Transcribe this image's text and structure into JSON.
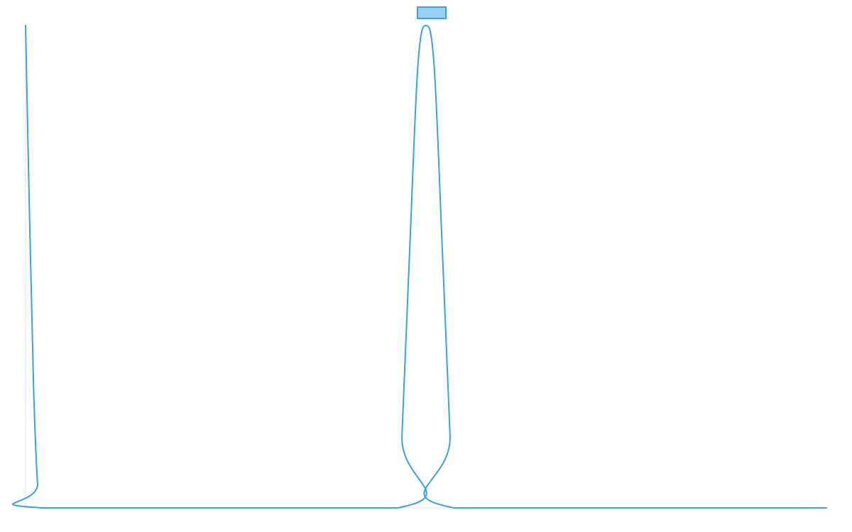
{
  "colors": {
    "series_stroke": "#36a2eb",
    "series_fill": "#9ad0f5",
    "axis": "#e3e3e3",
    "background": "#ffffff"
  },
  "chart_data": {
    "type": "line",
    "title": "",
    "xlabel": "",
    "ylabel": "",
    "legend": {
      "position": "top-center",
      "entries": [
        {
          "label": ""
        }
      ]
    },
    "grid": false,
    "xlim": [
      0,
      100
    ],
    "ylim": [
      0,
      1
    ],
    "series": [
      {
        "color": "#36a2eb",
        "fill": "#9ad0f5",
        "x": [
          0,
          0.5,
          1,
          1.5,
          2,
          46.5,
          47,
          48,
          49,
          50,
          51,
          52,
          53,
          53.5,
          100
        ],
        "y": [
          1,
          0.6,
          0.25,
          0.05,
          0,
          0,
          0.15,
          0.55,
          0.92,
          1,
          0.92,
          0.55,
          0.15,
          0,
          0
        ]
      }
    ]
  }
}
